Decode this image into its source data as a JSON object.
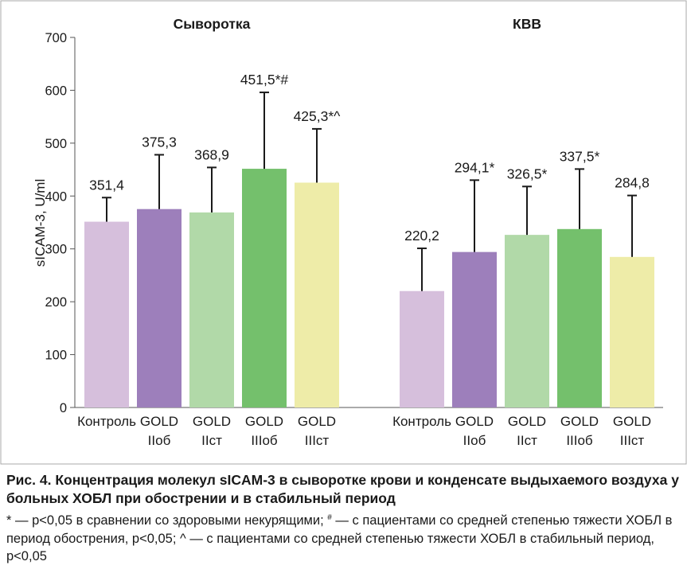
{
  "chart_data": {
    "type": "bar",
    "ylabel": "sICAM-3, U/ml",
    "ylim": [
      0,
      700
    ],
    "yticks": [
      0,
      100,
      200,
      300,
      400,
      500,
      600,
      700
    ],
    "grid": false,
    "legend": "none",
    "error_bars": true,
    "groups": [
      {
        "title": "Сыворотка",
        "bars": [
          {
            "label_line1": "Контроль",
            "label_line2": "",
            "value": 351.4,
            "error_top": 397,
            "data_label": "351,4",
            "color": "#d6bfdc"
          },
          {
            "label_line1": "GOLD",
            "label_line2": "IIоб",
            "value": 375.3,
            "error_top": 478,
            "data_label": "375,3",
            "color": "#9d7fbb"
          },
          {
            "label_line1": "GOLD",
            "label_line2": "IIст",
            "value": 368.9,
            "error_top": 454,
            "data_label": "368,9",
            "color": "#b1d9a8"
          },
          {
            "label_line1": "GOLD",
            "label_line2": "IIIоб",
            "value": 451.5,
            "error_top": 596,
            "data_label": "451,5*#",
            "color": "#74c06c"
          },
          {
            "label_line1": "GOLD",
            "label_line2": "IIIст",
            "value": 425.3,
            "error_top": 527,
            "data_label": "425,3*^",
            "color": "#eeeca8"
          }
        ]
      },
      {
        "title": "КВВ",
        "bars": [
          {
            "label_line1": "Контроль",
            "label_line2": "",
            "value": 220.2,
            "error_top": 301,
            "data_label": "220,2",
            "color": "#d6bfdc"
          },
          {
            "label_line1": "GOLD",
            "label_line2": "IIоб",
            "value": 294.1,
            "error_top": 430,
            "data_label": "294,1*",
            "color": "#9d7fbb"
          },
          {
            "label_line1": "GOLD",
            "label_line2": "IIст",
            "value": 326.5,
            "error_top": 418,
            "data_label": "326,5*",
            "color": "#b1d9a8"
          },
          {
            "label_line1": "GOLD",
            "label_line2": "IIIоб",
            "value": 337.5,
            "error_top": 451,
            "data_label": "337,5*",
            "color": "#74c06c"
          },
          {
            "label_line1": "GOLD",
            "label_line2": "IIIст",
            "value": 284.8,
            "error_top": 401,
            "data_label": "284,8",
            "color": "#eeeca8"
          }
        ]
      }
    ]
  },
  "caption": {
    "title": "Рис. 4. Концентрация молекул sICAM-3 в сыворотке крови и конденсате выдыхаемого воздуха у больных ХОБЛ при обострении и в стабильный период",
    "note_part1": "* — p<0,05 в сравнении со здоровыми некурящими; ",
    "note_hash": "#",
    "note_part2": " — с пациентами со средней степенью тяжести ХОБЛ в период обострения, p<0,05; ^ — с пациентами со средней степенью тяжести ХОБЛ в стабильный период, p<0,05"
  }
}
